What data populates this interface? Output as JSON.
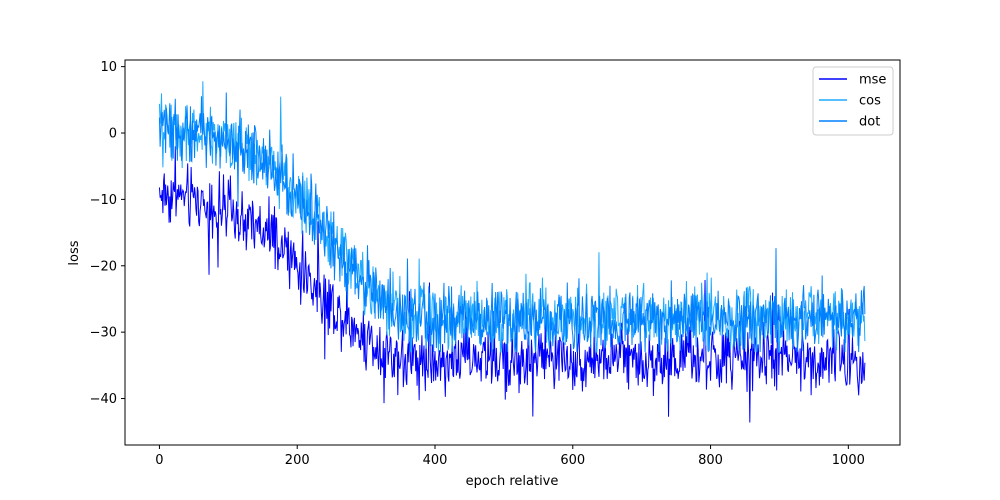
{
  "chart_data": {
    "type": "line",
    "xlabel": "epoch relative",
    "ylabel": "loss",
    "xlim": [
      -50,
      1075
    ],
    "ylim": [
      -47,
      11
    ],
    "xticks": [
      0,
      200,
      400,
      600,
      800,
      1000
    ],
    "xtick_labels": [
      "0",
      "200",
      "400",
      "600",
      "800",
      "1000"
    ],
    "yticks": [
      10,
      0,
      -10,
      -20,
      -30,
      -40
    ],
    "ytick_labels": [
      "10",
      "0",
      "−10",
      "−20",
      "−30",
      "−40"
    ],
    "grid": false,
    "legend_position": "top-right",
    "num_points": 1025,
    "series": [
      {
        "name": "mse",
        "color": "#0000ff",
        "trend_x": [
          0,
          50,
          100,
          150,
          200,
          250,
          300,
          350,
          400,
          500,
          600,
          700,
          800,
          900,
          1024
        ],
        "trend_y": [
          -9,
          -10,
          -12,
          -15,
          -20,
          -26,
          -31,
          -34,
          -34,
          -34,
          -34,
          -34,
          -34,
          -34,
          -34
        ],
        "noise_amplitude": 3.5,
        "min": -44.5,
        "max": -2
      },
      {
        "name": "cos",
        "color": "#1eaaff",
        "trend_x": [
          0,
          50,
          100,
          150,
          200,
          250,
          300,
          350,
          400,
          500,
          600,
          700,
          800,
          900,
          1024
        ],
        "trend_y": [
          1,
          0,
          -1,
          -4,
          -9,
          -16,
          -23,
          -27,
          -28,
          -28,
          -28,
          -28,
          -28,
          -28,
          -28
        ],
        "noise_amplitude": 3.5,
        "min": -33,
        "max": 9
      },
      {
        "name": "dot",
        "color": "#0080ff",
        "trend_x": [
          0,
          50,
          100,
          150,
          200,
          250,
          300,
          350,
          400,
          500,
          600,
          700,
          800,
          900,
          1024
        ],
        "trend_y": [
          1,
          0,
          -1,
          -4,
          -9,
          -16,
          -23,
          -27,
          -28,
          -28,
          -28,
          -28,
          -28,
          -28,
          -28
        ],
        "noise_amplitude": 3.5,
        "min": -33,
        "max": 9
      }
    ]
  }
}
